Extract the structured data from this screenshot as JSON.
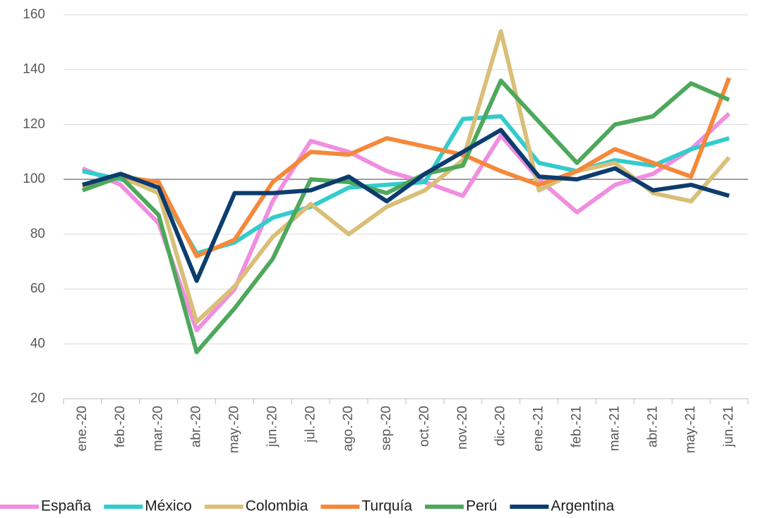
{
  "chart_data": {
    "type": "line",
    "categories": [
      "ene.-20",
      "feb.-20",
      "mar.-20",
      "abr.-20",
      "may.-20",
      "jun.-20",
      "jul.-20",
      "ago.-20",
      "sep.-20",
      "oct.-20",
      "nov.-20",
      "dic.-20",
      "ene.-21",
      "feb.-21",
      "mar.-21",
      "abr.-21",
      "may.-21",
      "jun.-21"
    ],
    "series": [
      {
        "name": "España",
        "color": "#f08ee0",
        "values": [
          104,
          98,
          84,
          45,
          60,
          92,
          114,
          110,
          103,
          99,
          94,
          116,
          100,
          88,
          98,
          102,
          111,
          124
        ]
      },
      {
        "name": "México",
        "color": "#33cccc",
        "values": [
          103,
          100,
          97,
          73,
          77,
          86,
          90,
          97,
          98,
          99,
          122,
          123,
          106,
          103,
          107,
          105,
          111,
          115
        ]
      },
      {
        "name": "Colombia",
        "color": "#d9bf77",
        "values": [
          97,
          101,
          95,
          48,
          61,
          79,
          91,
          80,
          90,
          96,
          107,
          154,
          96,
          103,
          106,
          95,
          92,
          108
        ]
      },
      {
        "name": "Turquía",
        "color": "#f5883a",
        "values": [
          98,
          101,
          99,
          72,
          78,
          99,
          110,
          109,
          115,
          112,
          109,
          103,
          98,
          103,
          111,
          106,
          101,
          137
        ]
      },
      {
        "name": "Perú",
        "color": "#4ea85c",
        "values": [
          96,
          101,
          87,
          37,
          53,
          71,
          100,
          99,
          95,
          102,
          105,
          136,
          121,
          106,
          120,
          123,
          135,
          129
        ]
      },
      {
        "name": "Argentina",
        "color": "#0d3c6e",
        "values": [
          98,
          102,
          97,
          63,
          95,
          95,
          96,
          101,
          92,
          102,
          110,
          118,
          101,
          100,
          104,
          96,
          98,
          94
        ]
      }
    ],
    "ylim": [
      20,
      160
    ],
    "yticks": [
      20,
      40,
      60,
      80,
      100,
      120,
      140,
      160
    ],
    "grid": true,
    "reference_line": 100,
    "legend": "bottom"
  }
}
